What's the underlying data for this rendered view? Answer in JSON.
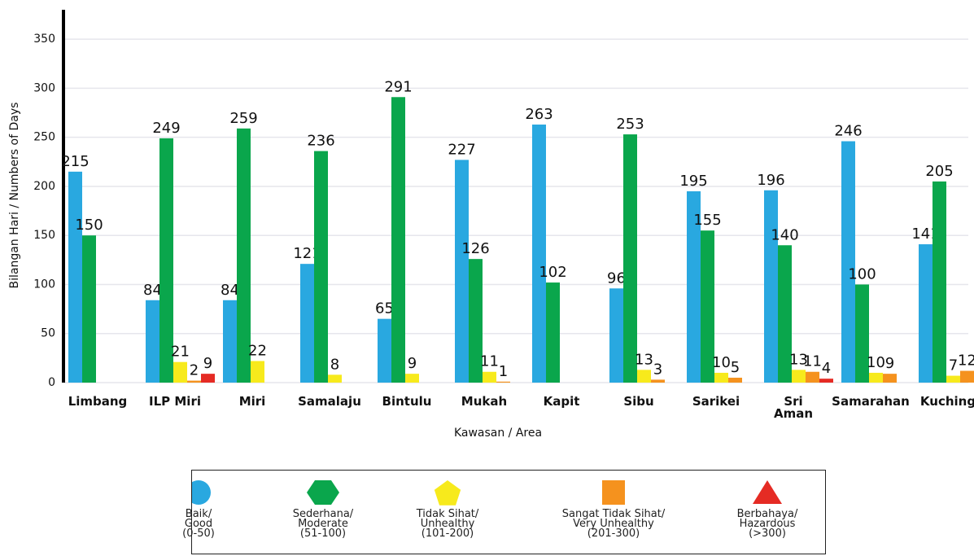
{
  "chart_data": {
    "type": "bar",
    "y_label": "Bilangan Hari / Numbers of Days",
    "x_label": "Kawasan / Area",
    "categories": [
      "Limbang",
      "ILP Miri",
      "Miri",
      "Samalaju",
      "Bintulu",
      "Mukah",
      "Kapit",
      "Sibu",
      "Sarikei",
      "Sri\nAman",
      "Samarahan",
      "Kuching"
    ],
    "series": [
      {
        "name": "Baik/\nGood\n(0-50)",
        "color": "#29a8e0",
        "marker": "circle",
        "values": [
          215,
          84,
          84,
          121,
          65,
          227,
          263,
          96,
          195,
          196,
          246,
          141
        ]
      },
      {
        "name": "Sederhana/\nModerate\n(51-100)",
        "color": "#0aa64c",
        "marker": "hexagon",
        "values": [
          150,
          249,
          259,
          236,
          291,
          126,
          102,
          253,
          155,
          140,
          100,
          205
        ]
      },
      {
        "name": "Tidak Sihat/\nUnhealthy\n(101-200)",
        "color": "#f7ea1c",
        "marker": "pentagon",
        "values": [
          null,
          21,
          22,
          8,
          9,
          11,
          null,
          13,
          10,
          13,
          10,
          7
        ]
      },
      {
        "name": "Sangat Tidak Sihat/\nVery Unhealthy\n(201-300)",
        "color": "#f5921e",
        "marker": "square",
        "values": [
          null,
          2,
          null,
          null,
          null,
          1,
          null,
          3,
          5,
          11,
          9,
          12
        ]
      },
      {
        "name": "Berbahaya/\nHazardous\n(>300)",
        "color": "#e52b24",
        "marker": "triangle",
        "values": [
          null,
          9,
          null,
          null,
          null,
          null,
          null,
          null,
          null,
          4,
          null,
          null
        ]
      }
    ],
    "ylim": [
      0,
      380
    ],
    "yticks": [
      0,
      50,
      100,
      150,
      200,
      250,
      300,
      350
    ],
    "grid": true
  }
}
